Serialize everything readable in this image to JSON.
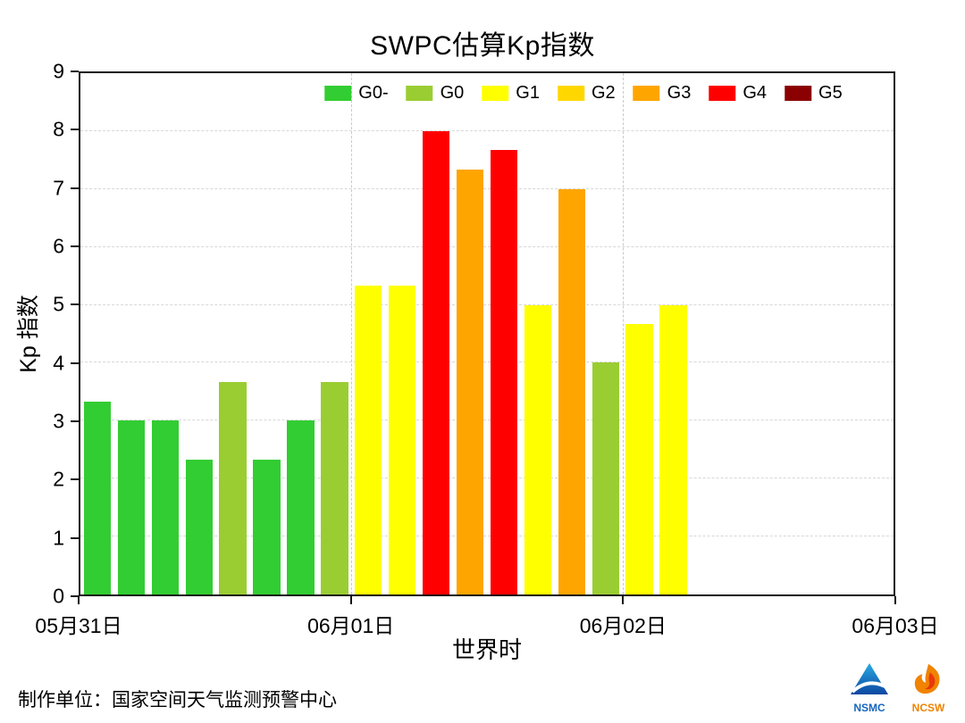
{
  "footer": {
    "credit": "制作单位：国家空间天气监测预警中心",
    "logos": [
      {
        "name": "NSMC",
        "label": "NSMC",
        "color": "#1565c0"
      },
      {
        "name": "NCSW",
        "label": "NCSW",
        "color": "#f08300"
      }
    ]
  },
  "chart_data": {
    "type": "bar",
    "title": "SWPC估算Kp指数",
    "xlabel": "世界时",
    "ylabel": "Kp 指数",
    "ylim": [
      0,
      9
    ],
    "yticks": [
      0,
      1,
      2,
      3,
      4,
      5,
      6,
      7,
      8,
      9
    ],
    "x_tick_labels": [
      "05月31日",
      "06月01日",
      "06月02日",
      "06月03日"
    ],
    "bars_per_day": 8,
    "grid": {
      "horizontal": true,
      "vertical_day_lines": true
    },
    "legend_position": "top-center-inside",
    "legend": [
      {
        "label": "G0-",
        "color": "#32cd32"
      },
      {
        "label": "G0",
        "color": "#9acd32"
      },
      {
        "label": "G1",
        "color": "#ffff00"
      },
      {
        "label": "G2",
        "color": "#ffd700"
      },
      {
        "label": "G3",
        "color": "#ffa500"
      },
      {
        "label": "G4",
        "color": "#ff0000"
      },
      {
        "label": "G5",
        "color": "#8b0000"
      }
    ],
    "bars": [
      {
        "slot": 0,
        "value": 3.33,
        "level": "G0-"
      },
      {
        "slot": 1,
        "value": 3.0,
        "level": "G0-"
      },
      {
        "slot": 2,
        "value": 3.0,
        "level": "G0-"
      },
      {
        "slot": 3,
        "value": 2.33,
        "level": "G0-"
      },
      {
        "slot": 4,
        "value": 3.67,
        "level": "G0"
      },
      {
        "slot": 5,
        "value": 2.33,
        "level": "G0-"
      },
      {
        "slot": 6,
        "value": 3.0,
        "level": "G0-"
      },
      {
        "slot": 7,
        "value": 3.67,
        "level": "G0"
      },
      {
        "slot": 8,
        "value": 5.33,
        "level": "G1"
      },
      {
        "slot": 9,
        "value": 5.33,
        "level": "G1"
      },
      {
        "slot": 10,
        "value": 8.0,
        "level": "G4"
      },
      {
        "slot": 11,
        "value": 7.33,
        "level": "G3"
      },
      {
        "slot": 12,
        "value": 7.67,
        "level": "G4"
      },
      {
        "slot": 13,
        "value": 5.0,
        "level": "G1"
      },
      {
        "slot": 14,
        "value": 7.0,
        "level": "G3"
      },
      {
        "slot": 15,
        "value": 4.0,
        "level": "G0"
      },
      {
        "slot": 16,
        "value": 4.67,
        "level": "G1"
      },
      {
        "slot": 17,
        "value": 5.0,
        "level": "G1"
      }
    ]
  }
}
